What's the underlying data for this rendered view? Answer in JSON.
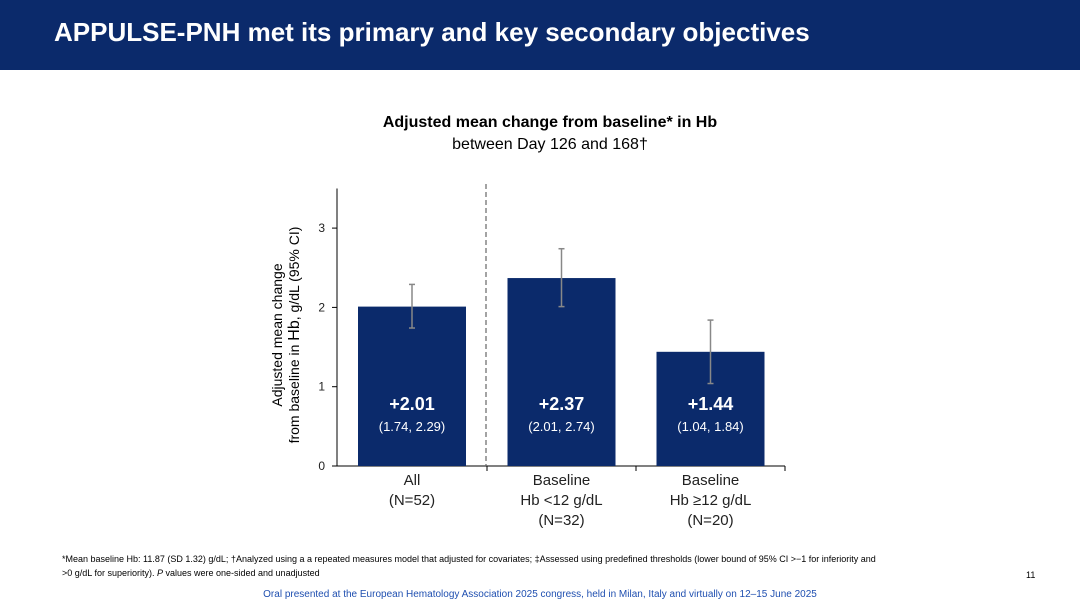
{
  "header": {
    "title": "APPULSE-PNH met its primary and key secondary objectives"
  },
  "colors": {
    "header_bg": "#0b2a6b",
    "bar": "#0b2a6b",
    "errorbar": "#888888"
  },
  "chart_data": {
    "type": "bar",
    "title": "Adjusted mean change from baseline* in Hb",
    "subtitle": "between Day 126 and 168†",
    "ylabel_line1": "Adjusted mean change",
    "ylabel_line2_pre": "from baseline in ",
    "ylabel_line2_hb": "Hb",
    "ylabel_line2_post": ", g/dL (95% CI)",
    "ylim": [
      0,
      3.5
    ],
    "yticks": [
      "0",
      "1",
      "2",
      "3"
    ],
    "categories": [
      {
        "lines": [
          "All",
          "(N=52)"
        ]
      },
      {
        "lines": [
          "Baseline",
          "Hb <12 g/dL",
          "(N=32)"
        ]
      },
      {
        "lines": [
          "Baseline",
          "Hb ≥12 g/dL",
          "(N=20)"
        ]
      }
    ],
    "values": [
      2.01,
      2.37,
      1.44
    ],
    "ci_low": [
      1.74,
      2.01,
      1.04
    ],
    "ci_high": [
      2.29,
      2.74,
      1.84
    ],
    "value_labels": [
      "+2.01",
      "+2.37",
      "+1.44"
    ],
    "ci_labels": [
      "(1.74, 2.29)",
      "(2.01, 2.74)",
      "(1.04, 1.84)"
    ],
    "separator_after_index": 0
  },
  "footnote": {
    "line1": "*Mean baseline Hb: 11.87 (SD 1.32) g/dL; †Analyzed using a a repeated measures model that adjusted for covariates; ‡Assessed using predefined thresholds (lower bound of 95% CI >−1 for inferiority and",
    "line2_pre": ">0 g/dL for superiority). ",
    "line2_p": "P",
    "line2_post": " values were one-sided and unadjusted"
  },
  "page_number": "11",
  "bottom_note": "Oral presented at the European Hematology Association 2025 congress, held in Milan, Italy and virtually on 12–15 June 2025"
}
